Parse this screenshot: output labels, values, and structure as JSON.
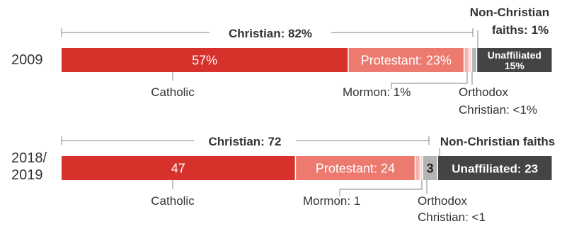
{
  "chart_data": {
    "type": "bar",
    "orientation": "horizontal-stacked",
    "colors": {
      "catholic": "#d6312b",
      "protestant": "#ec7a6f",
      "mormon": "#f5b3aa",
      "orthodox": "#f8d0ca",
      "non_christian": "#b4b4b4",
      "unaffiliated": "#444444",
      "bracket": "#999999",
      "text": "#333333"
    },
    "rows": [
      {
        "year": "2009",
        "christian_label": "Christian: 82%",
        "non_christian_label_line1": "Non-Christian",
        "non_christian_label_line2": "faiths: 1%",
        "segments": [
          {
            "key": "catholic",
            "value": 57,
            "text": "57%",
            "below": "Catholic"
          },
          {
            "key": "protestant",
            "value": 23,
            "text": "Protestant: 23%"
          },
          {
            "key": "mormon",
            "value": 1,
            "below": "Mormon: 1%"
          },
          {
            "key": "orthodox",
            "value": 0.5,
            "below_line1": "Orthodox",
            "below_line2": "Christian: <1%"
          },
          {
            "key": "non_christian",
            "value": 1
          },
          {
            "key": "unaffiliated",
            "value": 15,
            "text_line1": "Unaffiliated",
            "text_line2": "15%"
          }
        ]
      },
      {
        "year_line1": "2018/",
        "year_line2": "2019",
        "christian_label": "Christian: 72",
        "non_christian_label": "Non-Christian faiths",
        "segments": [
          {
            "key": "catholic",
            "value": 47,
            "text": "47",
            "below": "Catholic"
          },
          {
            "key": "protestant",
            "value": 24,
            "text": "Protestant: 24"
          },
          {
            "key": "mormon",
            "value": 1,
            "below": "Mormon: 1"
          },
          {
            "key": "orthodox",
            "value": 0.5,
            "below_line1": "Orthodox",
            "below_line2": "Christian: <1"
          },
          {
            "key": "non_christian",
            "value": 3,
            "text": "3"
          },
          {
            "key": "unaffiliated",
            "value": 23,
            "text": "Unaffiliated: 23"
          }
        ]
      }
    ]
  }
}
